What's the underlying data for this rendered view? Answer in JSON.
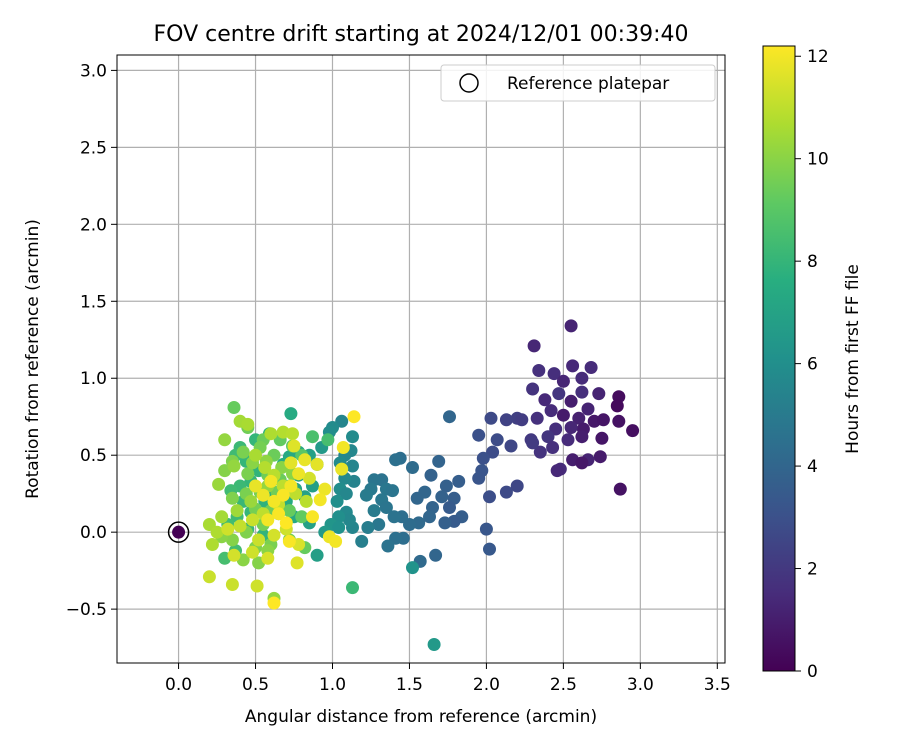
{
  "chart_data": {
    "type": "scatter",
    "title": "FOV centre drift starting at 2024/12/01 00:39:40",
    "xlabel": "Angular distance from reference (arcmin)",
    "ylabel": "Rotation from reference (arcmin)",
    "xlim": [
      -0.4,
      3.55
    ],
    "ylim": [
      -0.85,
      3.1
    ],
    "xticks": [
      "0.0",
      "0.5",
      "1.0",
      "1.5",
      "2.0",
      "2.5",
      "3.0",
      "3.5"
    ],
    "yticks": [
      "−0.5",
      "0.0",
      "0.5",
      "1.0",
      "1.5",
      "2.0",
      "2.5",
      "3.0"
    ],
    "grid": true,
    "legend": {
      "placement": "upper-right",
      "entries": [
        "Reference platepar"
      ]
    },
    "colorbar": {
      "label": "Hours from first FF file",
      "range": [
        0,
        12.2
      ],
      "ticks": [
        "0",
        "2",
        "4",
        "6",
        "8",
        "10",
        "12"
      ],
      "colormap": "viridis"
    },
    "reference_point": {
      "x": 0.0,
      "y": 0.0,
      "hours": 0.0
    },
    "points": [
      [
        2.55,
        1.34,
        1.2
      ],
      [
        2.31,
        1.21,
        1.3
      ],
      [
        2.56,
        1.08,
        1.4
      ],
      [
        2.68,
        1.07,
        1.5
      ],
      [
        2.44,
        1.03,
        1.6
      ],
      [
        2.34,
        1.05,
        1.7
      ],
      [
        2.62,
        1.0,
        1.5
      ],
      [
        2.5,
        0.98,
        1.3
      ],
      [
        2.3,
        0.93,
        1.8
      ],
      [
        2.47,
        0.9,
        1.9
      ],
      [
        2.38,
        0.86,
        1.4
      ],
      [
        2.62,
        0.91,
        1.6
      ],
      [
        2.73,
        0.9,
        1.2
      ],
      [
        2.86,
        0.88,
        0.4
      ],
      [
        2.85,
        0.82,
        0.3
      ],
      [
        2.55,
        0.85,
        1.0
      ],
      [
        2.66,
        0.8,
        1.2
      ],
      [
        2.42,
        0.79,
        1.5
      ],
      [
        2.5,
        0.76,
        0.9
      ],
      [
        2.33,
        0.74,
        1.7
      ],
      [
        2.6,
        0.74,
        1.1
      ],
      [
        2.7,
        0.72,
        0.8
      ],
      [
        2.76,
        0.73,
        0.7
      ],
      [
        2.86,
        0.72,
        0.6
      ],
      [
        2.95,
        0.66,
        0.5
      ],
      [
        2.63,
        0.67,
        0.9
      ],
      [
        2.55,
        0.68,
        1.3
      ],
      [
        2.45,
        0.67,
        1.6
      ],
      [
        2.4,
        0.62,
        1.9
      ],
      [
        2.29,
        0.6,
        2.0
      ],
      [
        2.53,
        0.6,
        1.5
      ],
      [
        2.62,
        0.62,
        1.0
      ],
      [
        2.75,
        0.61,
        0.7
      ],
      [
        2.35,
        0.52,
        1.8
      ],
      [
        2.43,
        0.55,
        1.7
      ],
      [
        2.56,
        0.47,
        1.0
      ],
      [
        2.66,
        0.47,
        1.2
      ],
      [
        2.74,
        0.49,
        0.9
      ],
      [
        2.62,
        0.45,
        0.8
      ],
      [
        2.48,
        0.41,
        1.5
      ],
      [
        2.46,
        0.4,
        1.4
      ],
      [
        2.87,
        0.28,
        0.6
      ],
      [
        2.2,
        0.74,
        2.3
      ],
      [
        2.13,
        0.73,
        2.4
      ],
      [
        2.23,
        0.73,
        2.2
      ],
      [
        2.03,
        0.74,
        2.7
      ],
      [
        1.95,
        0.63,
        3.0
      ],
      [
        2.07,
        0.6,
        2.8
      ],
      [
        2.16,
        0.56,
        2.6
      ],
      [
        2.3,
        0.58,
        2.1
      ],
      [
        2.04,
        0.52,
        2.8
      ],
      [
        1.98,
        0.48,
        3.0
      ],
      [
        1.97,
        0.4,
        3.2
      ],
      [
        1.95,
        0.35,
        3.2
      ],
      [
        2.2,
        0.3,
        2.6
      ],
      [
        2.13,
        0.26,
        2.7
      ],
      [
        2.02,
        0.23,
        2.9
      ],
      [
        2.0,
        0.02,
        3.3
      ],
      [
        2.02,
        -0.11,
        3.4
      ],
      [
        1.76,
        0.75,
        4.0
      ],
      [
        1.69,
        0.46,
        3.9
      ],
      [
        1.64,
        0.37,
        3.8
      ],
      [
        1.74,
        0.3,
        3.7
      ],
      [
        1.82,
        0.33,
        3.6
      ],
      [
        1.79,
        0.22,
        3.6
      ],
      [
        1.71,
        0.23,
        3.8
      ],
      [
        1.6,
        0.26,
        4.0
      ],
      [
        1.55,
        0.22,
        4.0
      ],
      [
        1.65,
        0.16,
        3.9
      ],
      [
        1.76,
        0.16,
        3.5
      ],
      [
        1.84,
        0.1,
        3.6
      ],
      [
        1.79,
        0.07,
        3.5
      ],
      [
        1.73,
        0.06,
        3.7
      ],
      [
        1.63,
        0.1,
        4.0
      ],
      [
        1.56,
        0.06,
        4.2
      ],
      [
        1.5,
        0.05,
        4.3
      ],
      [
        1.46,
        -0.04,
        4.4
      ],
      [
        1.57,
        -0.19,
        4.2
      ],
      [
        1.67,
        -0.15,
        4.0
      ],
      [
        1.52,
        0.42,
        4.3
      ],
      [
        1.44,
        0.48,
        4.4
      ],
      [
        1.41,
        0.47,
        4.5
      ],
      [
        1.32,
        0.34,
        4.6
      ],
      [
        1.27,
        0.34,
        4.7
      ],
      [
        1.25,
        0.28,
        4.9
      ],
      [
        1.35,
        0.28,
        4.8
      ],
      [
        1.39,
        0.27,
        4.7
      ],
      [
        1.22,
        0.24,
        5.0
      ],
      [
        1.32,
        0.21,
        4.8
      ],
      [
        1.27,
        0.14,
        5.0
      ],
      [
        1.35,
        0.16,
        4.7
      ],
      [
        1.45,
        0.1,
        4.4
      ],
      [
        1.4,
        0.1,
        4.6
      ],
      [
        1.3,
        0.05,
        4.8
      ],
      [
        1.23,
        0.03,
        5.1
      ],
      [
        1.41,
        -0.04,
        4.5
      ],
      [
        1.36,
        -0.09,
        4.6
      ],
      [
        1.19,
        -0.06,
        5.2
      ],
      [
        1.13,
        0.03,
        5.5
      ],
      [
        1.52,
        -0.23,
        6.2
      ],
      [
        1.66,
        -0.73,
        6.5
      ],
      [
        1.13,
        0.62,
        5.8
      ],
      [
        1.12,
        0.53,
        5.6
      ],
      [
        1.06,
        0.72,
        5.5
      ],
      [
        1.0,
        0.68,
        5.8
      ],
      [
        0.98,
        0.65,
        5.9
      ],
      [
        1.08,
        0.5,
        5.6
      ],
      [
        1.05,
        0.45,
        5.8
      ],
      [
        1.13,
        0.43,
        5.5
      ],
      [
        1.14,
        0.33,
        5.4
      ],
      [
        1.08,
        0.35,
        5.7
      ],
      [
        1.05,
        0.28,
        5.9
      ],
      [
        1.09,
        0.25,
        5.6
      ],
      [
        1.03,
        0.2,
        6.0
      ],
      [
        1.09,
        0.13,
        5.7
      ],
      [
        1.11,
        0.08,
        5.6
      ],
      [
        1.04,
        0.1,
        6.0
      ],
      [
        0.99,
        0.05,
        6.3
      ],
      [
        1.04,
        0.03,
        6.1
      ],
      [
        0.95,
        0.0,
        6.5
      ],
      [
        0.9,
        0.44,
        6.6
      ],
      [
        0.93,
        0.55,
        6.5
      ],
      [
        0.85,
        0.5,
        6.9
      ],
      [
        0.78,
        0.52,
        7.2
      ],
      [
        0.72,
        0.49,
        7.3
      ],
      [
        0.68,
        0.44,
        7.5
      ],
      [
        0.78,
        0.37,
        7.0
      ],
      [
        0.87,
        0.3,
        6.8
      ],
      [
        0.82,
        0.23,
        6.9
      ],
      [
        0.76,
        0.28,
        7.1
      ],
      [
        0.7,
        0.2,
        7.4
      ],
      [
        0.62,
        0.26,
        7.6
      ],
      [
        0.56,
        0.2,
        7.8
      ],
      [
        0.65,
        0.12,
        7.6
      ],
      [
        0.75,
        0.1,
        7.3
      ],
      [
        0.85,
        0.06,
        6.9
      ],
      [
        0.9,
        -0.15,
        6.8
      ],
      [
        0.73,
        0.77,
        7.4
      ],
      [
        0.59,
        0.64,
        7.8
      ],
      [
        0.5,
        0.6,
        8.0
      ],
      [
        0.4,
        0.55,
        8.2
      ],
      [
        0.37,
        0.5,
        8.3
      ],
      [
        0.44,
        0.46,
        8.0
      ],
      [
        0.52,
        0.4,
        7.9
      ],
      [
        0.47,
        0.33,
        8.0
      ],
      [
        0.4,
        0.3,
        8.2
      ],
      [
        0.34,
        0.27,
        8.3
      ],
      [
        0.42,
        0.2,
        8.1
      ],
      [
        0.47,
        0.13,
        8.0
      ],
      [
        0.38,
        0.1,
        8.3
      ],
      [
        0.32,
        0.05,
        8.4
      ],
      [
        0.45,
        0.02,
        8.1
      ],
      [
        0.55,
        -0.02,
        7.9
      ],
      [
        0.37,
        -0.12,
        8.4
      ],
      [
        0.3,
        -0.17,
        8.5
      ],
      [
        1.13,
        -0.36,
        8.2
      ],
      [
        0.36,
        0.81,
        9.3
      ],
      [
        0.87,
        0.62,
        8.6
      ],
      [
        0.97,
        0.6,
        8.5
      ],
      [
        0.45,
        0.68,
        9.5
      ],
      [
        0.55,
        0.6,
        9.4
      ],
      [
        0.66,
        0.6,
        9.2
      ],
      [
        0.74,
        0.56,
        9.1
      ],
      [
        0.8,
        0.5,
        9.0
      ],
      [
        0.62,
        0.5,
        9.4
      ],
      [
        0.53,
        0.55,
        9.6
      ],
      [
        0.42,
        0.52,
        9.7
      ],
      [
        0.35,
        0.46,
        9.8
      ],
      [
        0.3,
        0.4,
        9.9
      ],
      [
        0.45,
        0.38,
        9.7
      ],
      [
        0.58,
        0.37,
        9.5
      ],
      [
        0.66,
        0.34,
        9.4
      ],
      [
        0.72,
        0.3,
        9.2
      ],
      [
        0.64,
        0.26,
        9.5
      ],
      [
        0.53,
        0.26,
        9.6
      ],
      [
        0.44,
        0.25,
        9.7
      ],
      [
        0.35,
        0.22,
        9.8
      ],
      [
        0.5,
        0.15,
        9.6
      ],
      [
        0.6,
        0.14,
        9.5
      ],
      [
        0.72,
        0.14,
        9.3
      ],
      [
        0.8,
        0.1,
        9.2
      ],
      [
        0.55,
        0.05,
        9.6
      ],
      [
        0.44,
        0.0,
        9.8
      ],
      [
        0.35,
        -0.05,
        9.9
      ],
      [
        0.28,
        -0.03,
        10.0
      ],
      [
        0.5,
        -0.1,
        9.8
      ],
      [
        0.6,
        -0.08,
        9.7
      ],
      [
        0.72,
        -0.05,
        9.5
      ],
      [
        0.82,
        -0.1,
        9.3
      ],
      [
        0.42,
        -0.18,
        10.0
      ],
      [
        0.52,
        -0.2,
        9.9
      ],
      [
        0.58,
        -0.12,
        10.0
      ],
      [
        0.62,
        -0.43,
        10.2
      ],
      [
        0.26,
        0.31,
        10.3
      ],
      [
        0.36,
        0.43,
        10.2
      ],
      [
        0.48,
        0.45,
        10.0
      ],
      [
        0.57,
        0.46,
        10.1
      ],
      [
        0.67,
        0.42,
        10.0
      ],
      [
        0.74,
        0.38,
        10.0
      ],
      [
        0.58,
        0.3,
        10.2
      ],
      [
        0.47,
        0.2,
        10.3
      ],
      [
        0.38,
        0.14,
        10.4
      ],
      [
        0.28,
        0.1,
        10.5
      ],
      [
        0.2,
        0.05,
        10.6
      ],
      [
        0.25,
        0.0,
        10.7
      ],
      [
        0.22,
        -0.08,
        10.7
      ],
      [
        0.3,
        0.6,
        10.2
      ],
      [
        0.4,
        0.72,
        10.5
      ],
      [
        0.45,
        0.7,
        10.6
      ],
      [
        0.6,
        0.64,
        10.7
      ],
      [
        0.68,
        0.65,
        10.8
      ],
      [
        0.74,
        0.64,
        10.9
      ],
      [
        0.5,
        0.5,
        10.6
      ],
      [
        0.56,
        0.42,
        10.8
      ],
      [
        0.62,
        0.37,
        10.9
      ],
      [
        0.68,
        0.3,
        11.0
      ],
      [
        0.76,
        0.25,
        11.0
      ],
      [
        0.83,
        0.2,
        10.9
      ],
      [
        0.65,
        0.18,
        11.1
      ],
      [
        0.55,
        0.12,
        11.0
      ],
      [
        0.48,
        0.08,
        11.2
      ],
      [
        0.4,
        0.04,
        11.1
      ],
      [
        0.32,
        0.02,
        11.3
      ],
      [
        0.52,
        -0.05,
        11.2
      ],
      [
        0.62,
        -0.02,
        11.4
      ],
      [
        0.7,
        0.02,
        11.3
      ],
      [
        0.78,
        -0.08,
        11.5
      ],
      [
        0.48,
        -0.13,
        11.3
      ],
      [
        0.36,
        -0.15,
        11.4
      ],
      [
        0.2,
        -0.29,
        11.2
      ],
      [
        0.35,
        -0.34,
        11.2
      ],
      [
        0.51,
        -0.35,
        11.3
      ],
      [
        0.58,
        -0.17,
        11.5
      ],
      [
        0.77,
        -0.2,
        11.6
      ],
      [
        0.85,
        0.35,
        11.4
      ],
      [
        0.9,
        0.44,
        11.7
      ],
      [
        0.82,
        0.47,
        11.8
      ],
      [
        0.73,
        0.45,
        11.7
      ],
      [
        0.75,
        0.56,
        11.6
      ],
      [
        0.78,
        0.38,
        11.9
      ],
      [
        0.73,
        0.3,
        12.0
      ],
      [
        0.68,
        0.24,
        12.1
      ],
      [
        0.62,
        0.2,
        12.0
      ],
      [
        0.55,
        0.24,
        11.9
      ],
      [
        0.5,
        0.3,
        11.8
      ],
      [
        0.6,
        0.33,
        12.0
      ],
      [
        0.65,
        0.12,
        12.1
      ],
      [
        0.58,
        0.08,
        12.0
      ],
      [
        0.7,
        0.06,
        12.2
      ],
      [
        0.72,
        -0.06,
        12.1
      ],
      [
        0.95,
        0.28,
        11.9
      ],
      [
        0.92,
        0.21,
        12.0
      ],
      [
        0.87,
        0.1,
        12.1
      ],
      [
        0.98,
        -0.03,
        11.9
      ],
      [
        1.02,
        -0.06,
        12.0
      ],
      [
        1.06,
        0.41,
        11.8
      ],
      [
        1.07,
        0.55,
        12.0
      ],
      [
        1.14,
        0.75,
        12.2
      ],
      [
        0.62,
        -0.46,
        12.2
      ]
    ]
  }
}
